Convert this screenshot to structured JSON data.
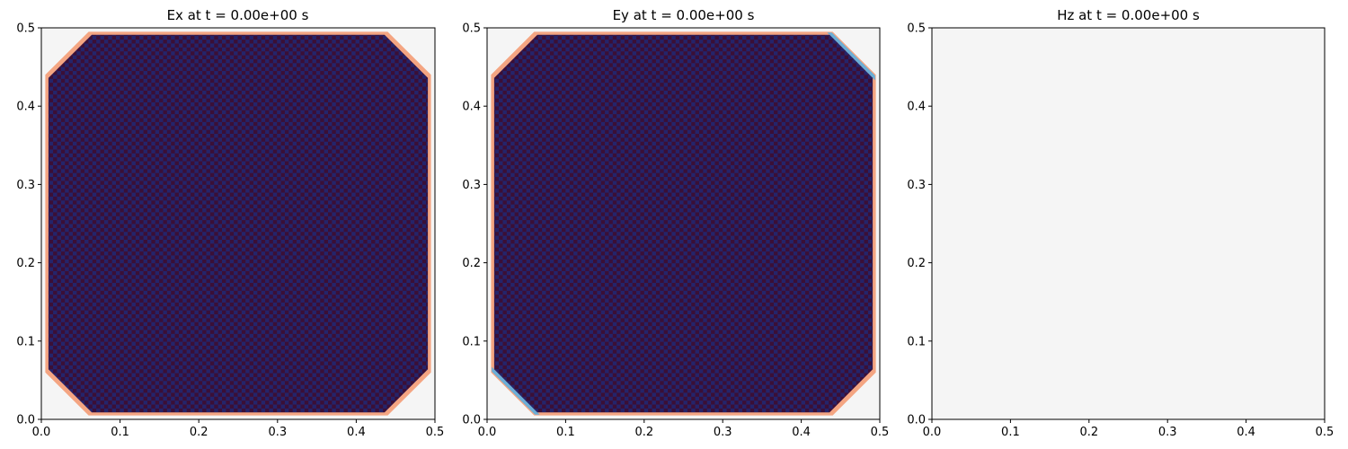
{
  "chart_data": [
    {
      "type": "heatmap",
      "title": "Ex at t = 0.00e+00 s",
      "xlabel": "",
      "ylabel": "",
      "xlim": [
        0.0,
        0.5
      ],
      "ylim": [
        0.0,
        0.5
      ],
      "xticks": [
        "0.0",
        "0.1",
        "0.2",
        "0.3",
        "0.4",
        "0.5"
      ],
      "yticks": [
        "0.0",
        "0.1",
        "0.2",
        "0.3",
        "0.4",
        "0.5"
      ],
      "grid_cells": 100,
      "background_color": "#f5f5f5",
      "fill_pattern": "checkerboard",
      "fill_colors": [
        "#3b0f36",
        "#24246b"
      ],
      "edge_color": "#f4a582",
      "corner_cut": 0.055,
      "edge_tint": "red"
    },
    {
      "type": "heatmap",
      "title": "Ey at t = 0.00e+00 s",
      "xlabel": "",
      "ylabel": "",
      "xlim": [
        0.0,
        0.5
      ],
      "ylim": [
        0.0,
        0.5
      ],
      "xticks": [
        "0.0",
        "0.1",
        "0.2",
        "0.3",
        "0.4",
        "0.5"
      ],
      "yticks": [
        "0.0",
        "0.1",
        "0.2",
        "0.3",
        "0.4",
        "0.5"
      ],
      "grid_cells": 100,
      "background_color": "#f5f5f5",
      "fill_pattern": "checkerboard",
      "fill_colors": [
        "#3b0f36",
        "#24246b"
      ],
      "edge_color": "#f4a582",
      "edge_color_alt": "#6baed6",
      "corner_cut": 0.055,
      "edge_tint": "mixed"
    },
    {
      "type": "heatmap",
      "title": "Hz at t = 0.00e+00 s",
      "xlabel": "",
      "ylabel": "",
      "xlim": [
        0.0,
        0.5
      ],
      "ylim": [
        0.0,
        0.5
      ],
      "xticks": [
        "0.0",
        "0.1",
        "0.2",
        "0.3",
        "0.4",
        "0.5"
      ],
      "yticks": [
        "0.0",
        "0.1",
        "0.2",
        "0.3",
        "0.4",
        "0.5"
      ],
      "grid_cells": 100,
      "background_color": "#f5f5f5",
      "fill_pattern": "uniform",
      "fill_colors": [
        "#f5f5f5"
      ],
      "corner_cut": 0
    }
  ]
}
